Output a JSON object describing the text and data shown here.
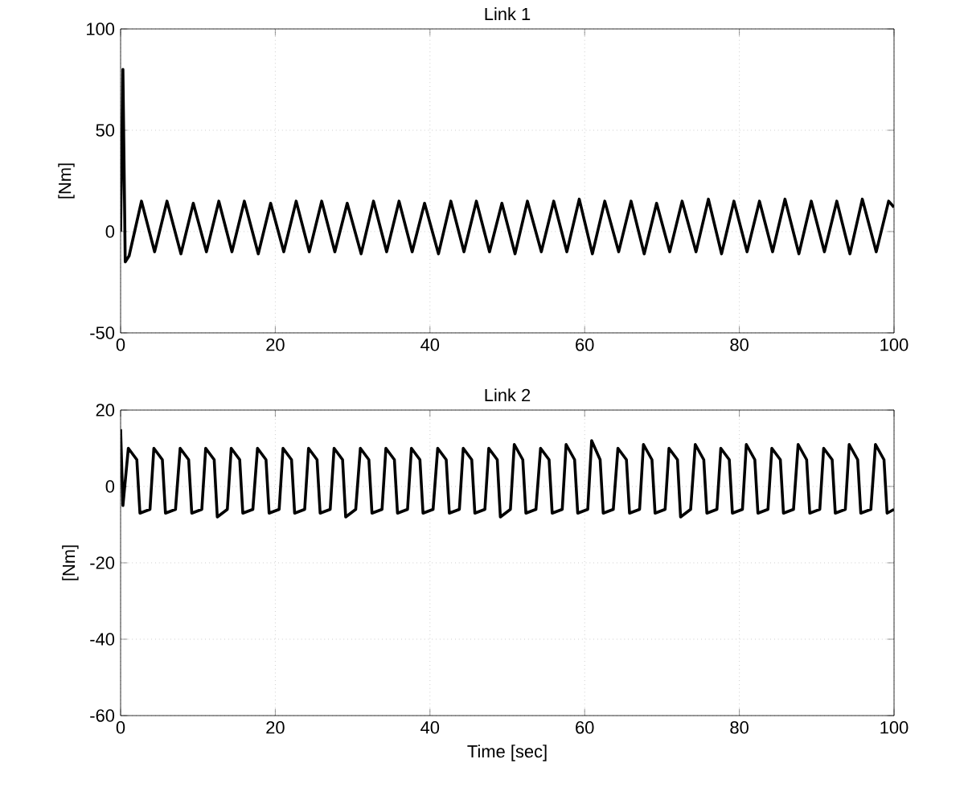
{
  "chart_data": [
    {
      "type": "line",
      "title": "Link 1",
      "ylabel": "[Nm]",
      "xlim": [
        0,
        100
      ],
      "ylim": [
        -50,
        100
      ],
      "xticks": [
        0,
        20,
        40,
        60,
        80,
        100
      ],
      "yticks": [
        -50,
        0,
        50,
        100
      ],
      "grid": true,
      "color": "#000000",
      "x": [
        0,
        0.3,
        0.6,
        1.1,
        2.7,
        4.4,
        6.0,
        7.8,
        9.4,
        11.1,
        12.7,
        14.4,
        16.0,
        17.8,
        19.4,
        21.1,
        22.7,
        24.4,
        26.0,
        27.7,
        29.3,
        31.1,
        32.7,
        34.4,
        36.0,
        37.7,
        39.3,
        41.1,
        42.7,
        44.4,
        46.0,
        47.7,
        49.3,
        51.0,
        52.6,
        54.4,
        56.0,
        57.7,
        59.3,
        61.0,
        62.6,
        64.4,
        66.0,
        67.7,
        69.3,
        71.0,
        72.6,
        74.4,
        76.0,
        77.7,
        79.3,
        81.0,
        82.6,
        84.3,
        85.9,
        87.7,
        89.3,
        91.0,
        92.6,
        94.3,
        95.9,
        97.7,
        99.3,
        100
      ],
      "values": [
        0,
        80,
        -15,
        -12,
        15,
        -10,
        15,
        -11,
        14,
        -10,
        15,
        -10,
        15,
        -11,
        14,
        -10,
        15,
        -10,
        15,
        -10,
        14,
        -11,
        15,
        -10,
        15,
        -10,
        14,
        -11,
        15,
        -10,
        15,
        -10,
        14,
        -11,
        15,
        -10,
        15,
        -10,
        16,
        -11,
        15,
        -10,
        15,
        -11,
        14,
        -10,
        15,
        -10,
        16,
        -11,
        15,
        -10,
        15,
        -10,
        16,
        -11,
        15,
        -10,
        15,
        -11,
        16,
        -10,
        15,
        12
      ]
    },
    {
      "type": "line",
      "title": "Link 2",
      "xlabel": "Time [sec]",
      "ylabel": "[Nm]",
      "xlim": [
        0,
        100
      ],
      "ylim": [
        -60,
        20
      ],
      "xticks": [
        0,
        20,
        40,
        60,
        80,
        100
      ],
      "yticks": [
        -60,
        -40,
        -20,
        0,
        20
      ],
      "grid": true,
      "color": "#000000",
      "x": [
        0,
        0.3,
        1.0,
        2.1,
        2.5,
        3.8,
        4.3,
        5.4,
        5.8,
        7.1,
        7.7,
        8.8,
        9.2,
        10.5,
        11.0,
        12.1,
        12.5,
        13.8,
        14.3,
        15.4,
        15.8,
        17.1,
        17.7,
        18.8,
        19.2,
        20.5,
        21.0,
        22.1,
        22.5,
        23.8,
        24.3,
        25.4,
        25.8,
        27.1,
        27.6,
        28.7,
        29.1,
        30.4,
        31.0,
        32.1,
        32.5,
        33.8,
        34.3,
        35.4,
        35.8,
        37.1,
        37.6,
        38.7,
        39.1,
        40.4,
        41.0,
        42.1,
        42.5,
        43.8,
        44.3,
        45.4,
        45.8,
        47.1,
        47.6,
        48.7,
        49.1,
        50.4,
        50.9,
        52.0,
        52.4,
        53.7,
        54.3,
        55.4,
        55.8,
        57.1,
        57.6,
        58.7,
        59.1,
        60.4,
        60.9,
        62.0,
        62.4,
        63.7,
        64.3,
        65.4,
        65.8,
        67.1,
        67.6,
        68.7,
        69.1,
        70.4,
        70.9,
        72.0,
        72.4,
        73.7,
        74.3,
        75.4,
        75.8,
        77.1,
        77.6,
        78.7,
        79.1,
        80.4,
        80.9,
        82.0,
        82.4,
        83.7,
        84.2,
        85.3,
        85.7,
        87.0,
        87.6,
        88.7,
        89.1,
        90.4,
        90.9,
        92.0,
        92.4,
        93.7,
        94.2,
        95.3,
        95.7,
        97.0,
        97.6,
        98.7,
        99.1,
        100
      ],
      "values": [
        15,
        -5,
        10,
        7,
        -7,
        -6,
        10,
        7,
        -7,
        -6,
        10,
        7,
        -7,
        -6,
        10,
        7,
        -8,
        -6,
        10,
        7,
        -7,
        -6,
        10,
        7,
        -7,
        -6,
        10,
        7,
        -7,
        -6,
        10,
        7,
        -7,
        -6,
        10,
        7,
        -8,
        -6,
        10,
        7,
        -7,
        -6,
        10,
        7,
        -7,
        -6,
        10,
        7,
        -7,
        -6,
        10,
        7,
        -7,
        -6,
        10,
        7,
        -7,
        -6,
        10,
        7,
        -8,
        -6,
        11,
        7,
        -7,
        -6,
        10,
        7,
        -7,
        -6,
        11,
        7,
        -7,
        -6,
        12,
        7,
        -7,
        -6,
        10,
        7,
        -7,
        -6,
        11,
        7,
        -7,
        -6,
        10,
        7,
        -8,
        -6,
        11,
        7,
        -7,
        -6,
        10,
        7,
        -7,
        -6,
        11,
        7,
        -7,
        -6,
        10,
        7,
        -7,
        -6,
        11,
        7,
        -7,
        -6,
        10,
        7,
        -7,
        -6,
        11,
        7,
        -7,
        -6,
        11,
        7,
        -7,
        -6
      ]
    }
  ]
}
